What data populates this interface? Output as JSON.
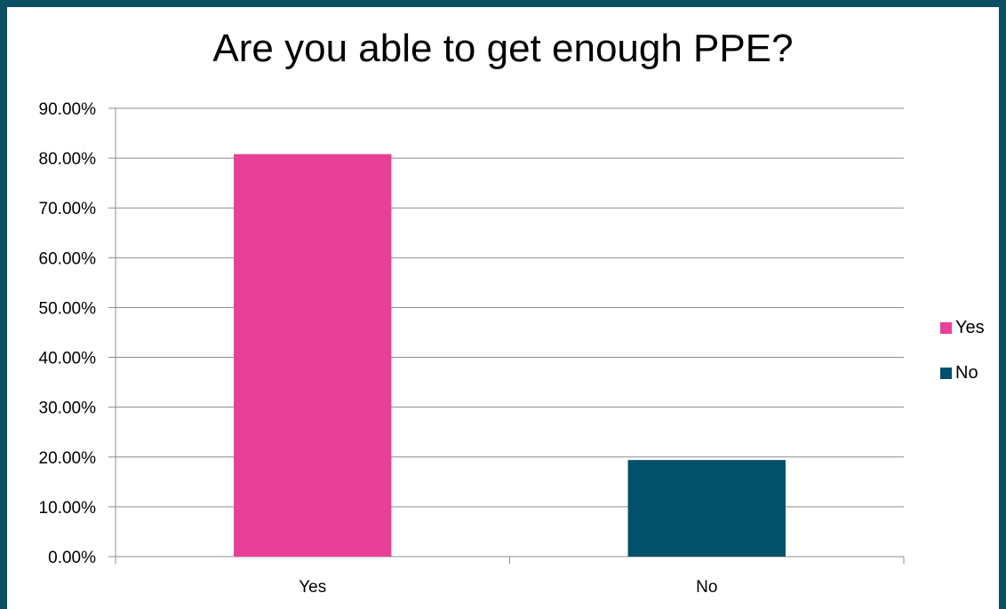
{
  "chart_data": {
    "type": "bar",
    "title": "Are you able to get enough PPE?",
    "categories": [
      "Yes",
      "No"
    ],
    "values": [
      0.808,
      0.194
    ],
    "colors": [
      "#e84096",
      "#02506a"
    ],
    "ylim": [
      0,
      0.9
    ],
    "yticks": [
      "0.00%",
      "10.00%",
      "20.00%",
      "30.00%",
      "40.00%",
      "50.00%",
      "60.00%",
      "70.00%",
      "80.00%",
      "90.00%"
    ],
    "grid": true,
    "legend": {
      "position": "right",
      "entries": [
        {
          "label": "Yes",
          "color": "#e84096"
        },
        {
          "label": "No",
          "color": "#02506a"
        }
      ]
    }
  }
}
